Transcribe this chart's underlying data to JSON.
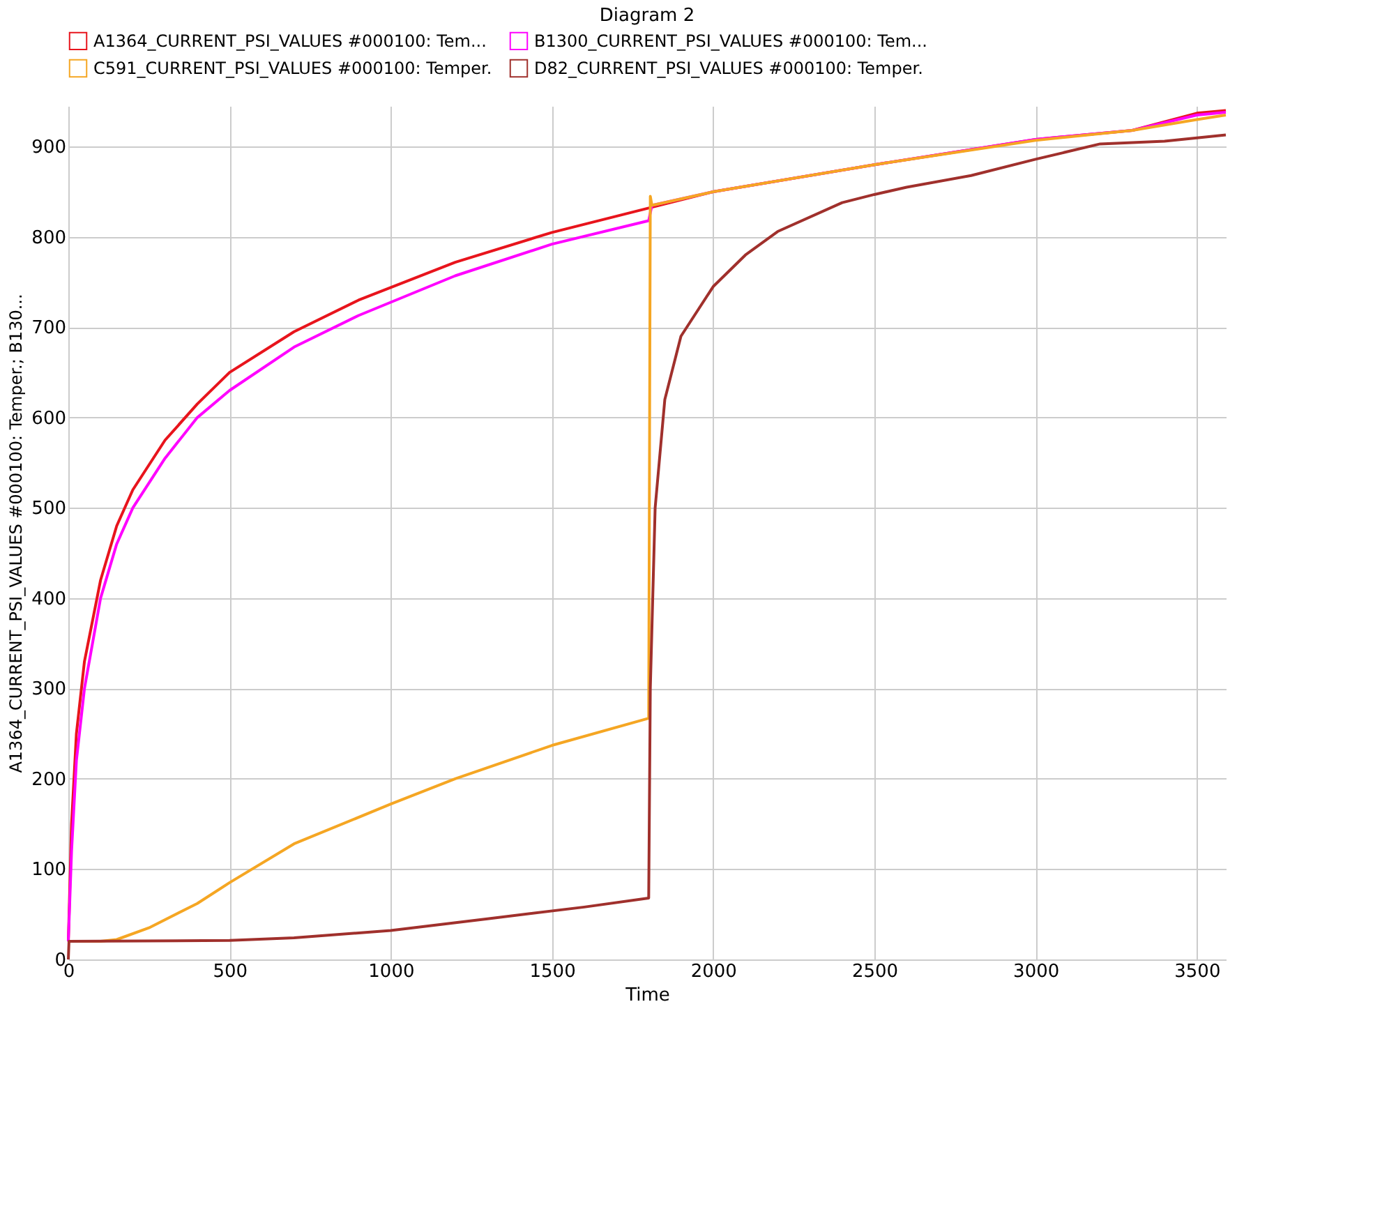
{
  "chart_data": {
    "type": "line",
    "title": "Diagram 2",
    "xlabel": "Time",
    "ylabel": "A1364_CURRENT_PSI_VALUES #000100: Temper.; B130...",
    "xlim": [
      0,
      3590
    ],
    "ylim": [
      0,
      945
    ],
    "xticks": [
      0,
      500,
      1000,
      1500,
      2000,
      2500,
      3000,
      3500
    ],
    "yticks": [
      0,
      100,
      200,
      300,
      400,
      500,
      600,
      700,
      800,
      900
    ],
    "grid": true,
    "legend": "top",
    "marker": "none",
    "line_style": "solid",
    "series": [
      {
        "name": "A1364_CURRENT_PSI_VALUES #000100: Tem...",
        "color": "#e8141c",
        "x": [
          0,
          10,
          25,
          50,
          100,
          150,
          200,
          300,
          400,
          500,
          700,
          900,
          1200,
          1500,
          1800,
          2000,
          2500,
          3000,
          3300,
          3500,
          3590
        ],
        "values": [
          20,
          150,
          250,
          330,
          420,
          480,
          520,
          575,
          615,
          650,
          695,
          730,
          772,
          805,
          832,
          850,
          880,
          908,
          918,
          937,
          940
        ]
      },
      {
        "name": "B1300_CURRENT_PSI_VALUES #000100: Tem...",
        "color": "#ff00ff",
        "x": [
          0,
          10,
          25,
          50,
          100,
          150,
          200,
          300,
          400,
          500,
          700,
          900,
          1200,
          1500,
          1800,
          1810,
          2000,
          2500,
          3000,
          3300,
          3500,
          3590
        ],
        "values": [
          20,
          120,
          220,
          300,
          400,
          460,
          500,
          555,
          600,
          630,
          678,
          713,
          757,
          792,
          818,
          835,
          850,
          880,
          908,
          918,
          935,
          938
        ]
      },
      {
        "name": "C591_CURRENT_PSI_VALUES #000100: Temper.",
        "color": "#f5a623",
        "x": [
          0,
          100,
          150,
          250,
          400,
          500,
          700,
          1000,
          1200,
          1500,
          1800,
          1805,
          1810,
          2000,
          2500,
          3000,
          3300,
          3500,
          3590
        ],
        "values": [
          20,
          20,
          22,
          35,
          62,
          85,
          128,
          172,
          200,
          237,
          267,
          845,
          835,
          850,
          880,
          907,
          918,
          930,
          935
        ]
      },
      {
        "name": "D82_CURRENT_PSI_VALUES #000100: Temper.",
        "color": "#a0302c",
        "x": [
          0,
          2,
          500,
          700,
          1000,
          1300,
          1600,
          1800,
          1805,
          1820,
          1850,
          1900,
          2000,
          2100,
          2200,
          2400,
          2500,
          2600,
          2800,
          3000,
          3200,
          3400,
          3590
        ],
        "values": [
          0,
          20,
          21,
          24,
          32,
          45,
          58,
          68,
          300,
          500,
          620,
          690,
          745,
          780,
          806,
          838,
          847,
          855,
          868,
          886,
          903,
          906,
          913
        ]
      }
    ]
  }
}
